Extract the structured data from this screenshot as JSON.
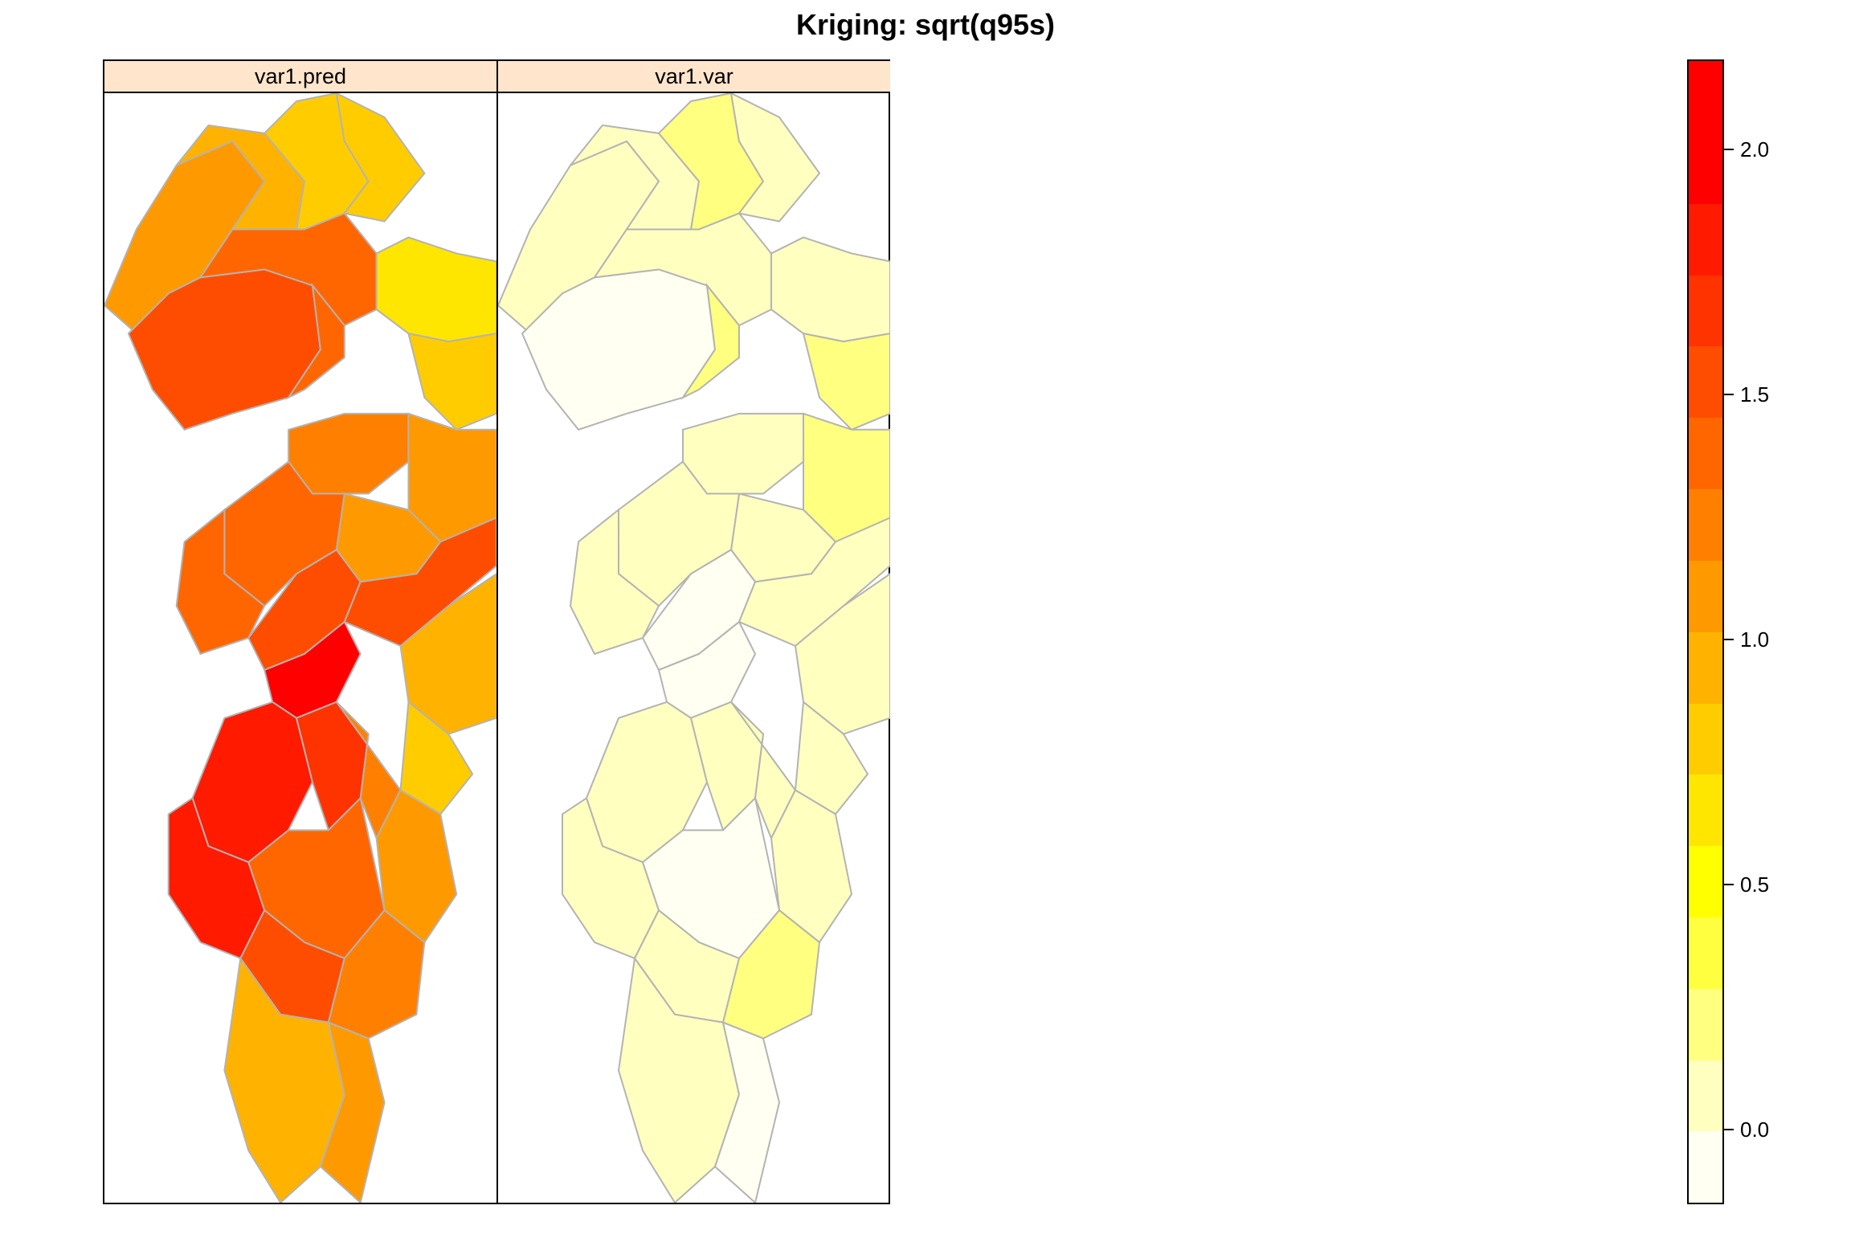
{
  "title": "Kriging: sqrt(q95s)",
  "panels": [
    {
      "label": "var1.pred"
    },
    {
      "label": "var1.var"
    }
  ],
  "colorkey": {
    "min": -0.15,
    "max": 2.18,
    "ticks": [
      {
        "value": 0.0,
        "label": "0.0"
      },
      {
        "value": 0.5,
        "label": "0.5"
      },
      {
        "value": 1.0,
        "label": "1.0"
      },
      {
        "value": 1.5,
        "label": "1.5"
      },
      {
        "value": 2.0,
        "label": "2.0"
      }
    ],
    "colors": [
      "#fffff2",
      "#ffffbf",
      "#ffff80",
      "#ffff40",
      "#ffff00",
      "#ffe600",
      "#ffcc00",
      "#ffb300",
      "#ff9900",
      "#ff8000",
      "#ff6600",
      "#ff4d00",
      "#ff3300",
      "#ff1a00",
      "#ff0000",
      "#ff0000"
    ]
  }
}
